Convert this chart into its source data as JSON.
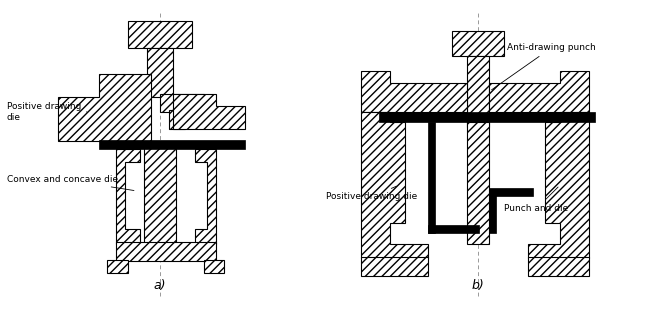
{
  "title_a": "a)",
  "title_b": "b)",
  "label_a1": "Positive drawing\ndie",
  "label_a2": "Convex and concave die",
  "label_b1": "Anti-drawing punch",
  "label_b2": "Positive drawing die",
  "label_b3": "Punch and die",
  "bg_color": "#ffffff",
  "hatch": "////",
  "ec": "#000000",
  "fc": "#ffffff",
  "black": "#000000",
  "dash_color": "#999999",
  "lw": 0.8,
  "font_size": 6.5,
  "title_font_size": 9
}
